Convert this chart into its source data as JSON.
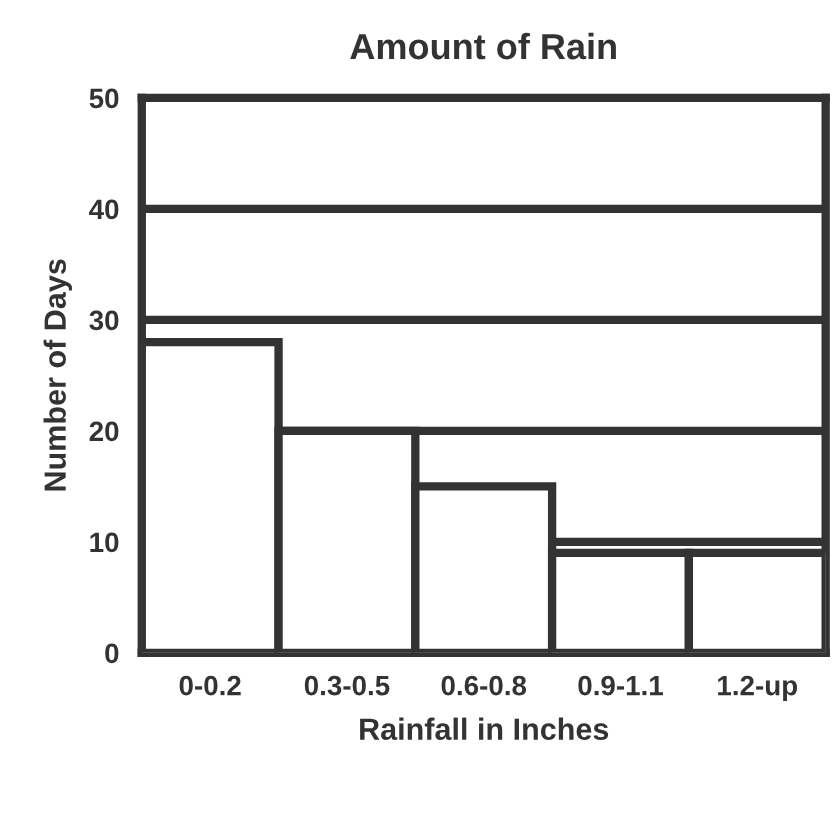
{
  "chart_data": {
    "type": "bar",
    "title": "Amount of Rain",
    "xlabel": "Rainfall in Inches",
    "ylabel": "Number of Days",
    "categories": [
      "0-0.2",
      "0.3-0.5",
      "0.6-0.8",
      "0.9-1.1",
      "1.2-up"
    ],
    "values": [
      28,
      20,
      15,
      9,
      9
    ],
    "color": "#ffffff",
    "ylim": [
      0,
      50
    ],
    "yticks": [
      0,
      10,
      20,
      30,
      40,
      50
    ],
    "grid": "y"
  }
}
